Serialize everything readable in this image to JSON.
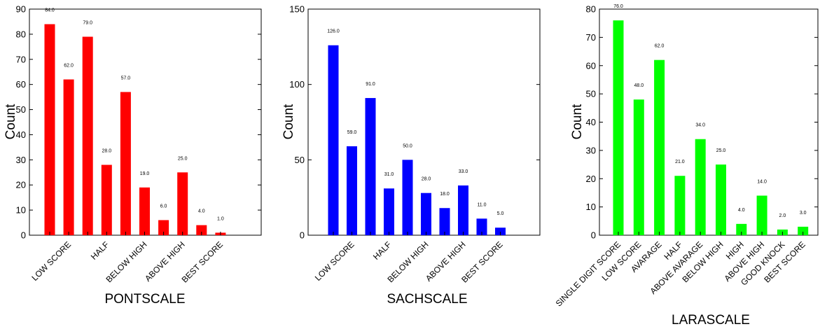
{
  "chart_data": [
    {
      "type": "bar",
      "color": "#ff0000",
      "categories": [
        "",
        "LOW SCORE",
        "",
        "HALF",
        "",
        "BELOW HIGH",
        "",
        "ABOVE HIGH",
        "",
        "BEST SCORE"
      ],
      "values": [
        84,
        62,
        79,
        28,
        57,
        19,
        6,
        25,
        4,
        1
      ],
      "data_labels": [
        "84.0",
        "62.0",
        "79.0",
        "28.0",
        "57.0",
        "19.0",
        "6.0",
        "25.0",
        "4.0",
        "1.0"
      ],
      "xlabel": "PONTSCALE",
      "ylabel": "Count",
      "ylim": [
        0,
        90
      ],
      "yticks": [
        0,
        10,
        20,
        30,
        40,
        50,
        60,
        70,
        80,
        90
      ],
      "ytick_labels": [
        "0",
        "10",
        "20",
        "30",
        "40",
        "50",
        "60",
        "70",
        "80",
        "90"
      ],
      "grid": false
    },
    {
      "type": "bar",
      "color": "#0000ff",
      "categories": [
        "",
        "LOW SCORE",
        "",
        "HALF",
        "",
        "BELOW HIGH",
        "",
        "ABOVE HIGH",
        "",
        "BEST SCORE"
      ],
      "values": [
        126,
        59,
        91,
        31,
        50,
        28,
        18,
        33,
        11,
        5
      ],
      "data_labels": [
        "126.0",
        "59.0",
        "91.0",
        "31.0",
        "50.0",
        "28.0",
        "18.0",
        "33.0",
        "11.0",
        "5.0"
      ],
      "xlabel": "SACHSCALE",
      "ylabel": "Count",
      "ylim": [
        0,
        150
      ],
      "yticks": [
        0,
        50,
        100,
        150
      ],
      "ytick_labels": [
        "0",
        "50",
        "100",
        "150"
      ],
      "grid": false
    },
    {
      "type": "bar",
      "color": "#00ff00",
      "categories": [
        "SINGLE DIGIT SCORE",
        "LOW SCORE",
        "AVARAGE",
        "HALF",
        "ABOVE AVARAGE",
        "BELOW HIGH",
        "HIGH",
        "ABOVE HIGH",
        "GOOD KNOCK",
        "BEST SCORE"
      ],
      "values": [
        76,
        48,
        62,
        21,
        34,
        25,
        4,
        14,
        2,
        3
      ],
      "data_labels": [
        "76.0",
        "48.0",
        "62.0",
        "21.0",
        "34.0",
        "25.0",
        "4.0",
        "14.0",
        "2.0",
        "3.0"
      ],
      "xlabel": "LARASCALE",
      "ylabel": "Count",
      "ylim": [
        0,
        80
      ],
      "yticks": [
        0,
        10,
        20,
        30,
        40,
        50,
        60,
        70,
        80
      ],
      "ytick_labels": [
        "0",
        "10",
        "20",
        "30",
        "40",
        "50",
        "60",
        "70",
        "80"
      ],
      "grid": false
    }
  ]
}
